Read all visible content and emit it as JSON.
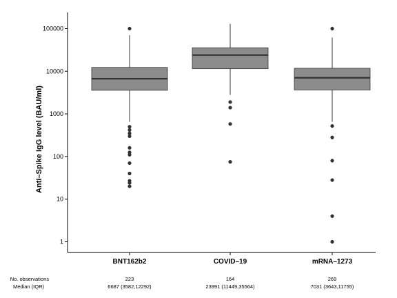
{
  "chart_data": {
    "type": "box",
    "ylabel": "Anti–Spike IgG level (BAU/ml)",
    "xlabel": "",
    "yscale": "log10",
    "ylim": [
      0.6,
      160000
    ],
    "yticks": [
      1,
      10,
      100,
      1000,
      10000,
      100000
    ],
    "ytick_labels": [
      "1",
      "10",
      "100",
      "1000",
      "10000",
      "100000"
    ],
    "grid": false,
    "box_color": "#8c8c8c",
    "categories": [
      "BNT162b2",
      "COVID–19",
      "mRNA–1273"
    ],
    "boxes": [
      {
        "q1": 3582,
        "median": 6687,
        "q3": 12292,
        "whisker_low": 650,
        "whisker_high": 70000,
        "outliers": [
          100000,
          500,
          420,
          350,
          300,
          160,
          125,
          110,
          70,
          40,
          27,
          24,
          20
        ]
      },
      {
        "q1": 11449,
        "median": 23991,
        "q3": 35564,
        "whisker_low": 2800,
        "whisker_high": 130000,
        "outliers": [
          1900,
          1400,
          580,
          75
        ]
      },
      {
        "q1": 3643,
        "median": 7031,
        "q3": 11755,
        "whisker_low": 650,
        "whisker_high": 62000,
        "outliers": [
          100000,
          520,
          280,
          80,
          28,
          4,
          1
        ]
      }
    ]
  },
  "footer": {
    "row1_label": "No. observations",
    "row2_label": "Median (IQR)",
    "observations": [
      "223",
      "164",
      "269"
    ],
    "medians": [
      "6687 (3582,12292)",
      "23991 (11449,35564)",
      "7031 (3643,11755)"
    ]
  }
}
